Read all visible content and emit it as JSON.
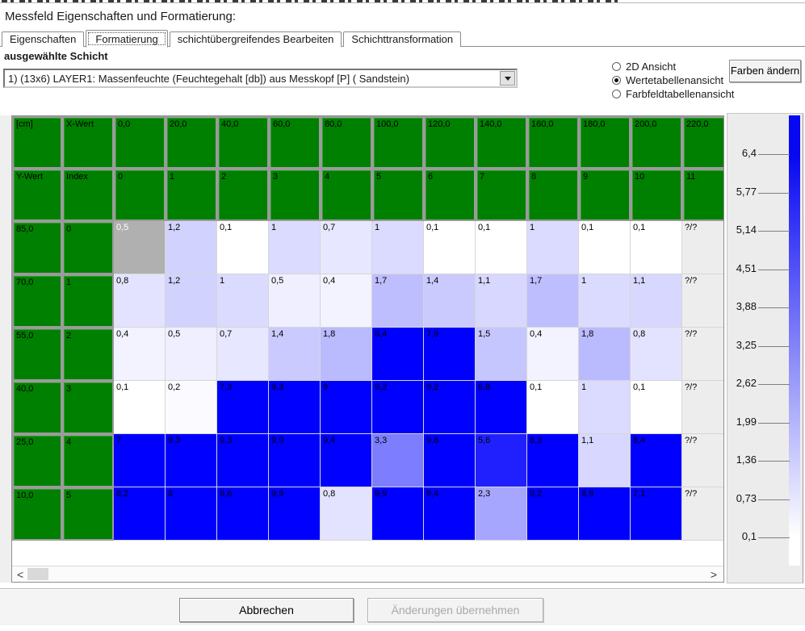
{
  "header": {
    "title": "Messfeld Eigenschaften und Formatierung:"
  },
  "tabs": [
    {
      "label": "Eigenschaften",
      "active": false
    },
    {
      "label": "Formatierung",
      "active": true
    },
    {
      "label": "schichtübergreifendes Bearbeiten",
      "active": false
    },
    {
      "label": "Schichttransformation",
      "active": false
    }
  ],
  "layer_selector": {
    "label": "ausgewählte Schicht",
    "value": "1) (13x6) LAYER1: Massenfeuchte (Feuchtegehalt [db])  aus Messkopf [P] ( Sandstein)"
  },
  "view_options": [
    {
      "label": "2D Ansicht",
      "selected": false
    },
    {
      "label": "Wertetabellenansicht",
      "selected": true
    },
    {
      "label": "Farbfeldtabellenansicht",
      "selected": false
    }
  ],
  "buttons": {
    "change_colors": "Farben ändern",
    "cancel": "Abbrechen",
    "apply": {
      "label": "Änderungen übernehmen",
      "enabled": false
    }
  },
  "table": {
    "corner_labels": {
      "unit": "[cm]",
      "x": "X-Wert",
      "y": "Y-Wert",
      "index": "Index"
    },
    "x_values": [
      "0,0",
      "20,0",
      "40,0",
      "60,0",
      "80,0",
      "100,0",
      "120,0",
      "140,0",
      "160,0",
      "180,0",
      "200,0",
      "220,0"
    ],
    "x_indices": [
      "0",
      "1",
      "2",
      "3",
      "4",
      "5",
      "6",
      "7",
      "8",
      "9",
      "10",
      "11"
    ],
    "rows": [
      {
        "y": "85,0",
        "index": "0",
        "values": [
          "0,5",
          "1,2",
          "0,1",
          "1",
          "0,7",
          "1",
          "0,1",
          "0,1",
          "1",
          "0,1",
          "0,1",
          "?/?"
        ]
      },
      {
        "y": "70,0",
        "index": "1",
        "values": [
          "0,8",
          "1,2",
          "1",
          "0,5",
          "0,4",
          "1,7",
          "1,4",
          "1,1",
          "1,7",
          "1",
          "1,1",
          "?/?"
        ]
      },
      {
        "y": "55,0",
        "index": "2",
        "values": [
          "0,4",
          "0,5",
          "0,7",
          "1,4",
          "1,8",
          "8,4",
          "7,9",
          "1,5",
          "0,4",
          "1,8",
          "0,8",
          "?/?"
        ]
      },
      {
        "y": "40,0",
        "index": "3",
        "values": [
          "0,1",
          "0,2",
          "7,3",
          "9,3",
          "9",
          "9,2",
          "9,2",
          "6,8",
          "0,1",
          "1",
          "0,1",
          "?/?"
        ]
      },
      {
        "y": "25,0",
        "index": "4",
        "values": [
          "7",
          "9,3",
          "9,3",
          "9,9",
          "9,4",
          "3,3",
          "9,6",
          "5,6",
          "8,3",
          "1,1",
          "8,4",
          "?/?"
        ]
      },
      {
        "y": "10,0",
        "index": "5",
        "values": [
          "8,2",
          "8",
          "9,6",
          "9,9",
          "0,8",
          "9,9",
          "9,4",
          "2,3",
          "9,2",
          "8,9",
          "7,1",
          "?/?"
        ]
      }
    ],
    "selected_cell": {
      "row": 0,
      "col": 0
    },
    "undefined_text": "?/?"
  },
  "color_scale": {
    "labels": [
      "6,4",
      "5,77",
      "5,14",
      "4,51",
      "3,88",
      "3,25",
      "2,62",
      "1,99",
      "1,36",
      "0,73",
      "0,1"
    ],
    "min": 0.1,
    "max": 6.4,
    "top_color": "#0707f2",
    "bottom_color": "#ffffff"
  },
  "colors": {
    "header_green": "#008000",
    "selected_gray": "#b0b0b0",
    "undefined_bg": "#ededed"
  },
  "scrollbar": {
    "left_arrow": "<",
    "right_arrow": ">"
  },
  "chart_data": {
    "type": "heatmap",
    "title": "Massenfeuchte (Feuchtegehalt [db]) aus Messkopf [P] ( Sandstein)",
    "xlabel": "X-Wert [cm]",
    "ylabel": "Y-Wert [cm]",
    "x": [
      0,
      20,
      40,
      60,
      80,
      100,
      120,
      140,
      160,
      180,
      200,
      220
    ],
    "y": [
      85,
      70,
      55,
      40,
      25,
      10
    ],
    "values": [
      [
        0.5,
        1.2,
        0.1,
        1,
        0.7,
        1,
        0.1,
        0.1,
        1,
        0.1,
        0.1,
        null
      ],
      [
        0.8,
        1.2,
        1,
        0.5,
        0.4,
        1.7,
        1.4,
        1.1,
        1.7,
        1,
        1.1,
        null
      ],
      [
        0.4,
        0.5,
        0.7,
        1.4,
        1.8,
        8.4,
        7.9,
        1.5,
        0.4,
        1.8,
        0.8,
        null
      ],
      [
        0.1,
        0.2,
        7.3,
        9.3,
        9,
        9.2,
        9.2,
        6.8,
        0.1,
        1,
        0.1,
        null
      ],
      [
        7,
        9.3,
        9.3,
        9.9,
        9.4,
        3.3,
        9.6,
        5.6,
        8.3,
        1.1,
        8.4,
        null
      ],
      [
        8.2,
        8,
        9.6,
        9.9,
        0.8,
        9.9,
        9.4,
        2.3,
        9.2,
        8.9,
        7.1,
        null
      ]
    ],
    "colorscale": {
      "min": 0.1,
      "max": 6.4,
      "ticks": [
        6.4,
        5.77,
        5.14,
        4.51,
        3.88,
        3.25,
        2.62,
        1.99,
        1.36,
        0.73,
        0.1
      ],
      "low": "white",
      "high": "blue"
    }
  }
}
